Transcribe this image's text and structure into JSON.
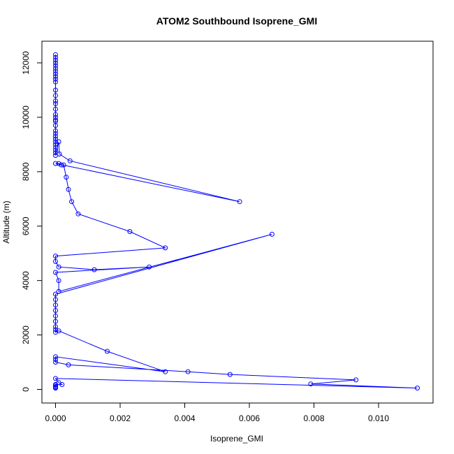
{
  "chart_data": {
    "type": "line",
    "title": "ATOM2 Southbound Isoprene_GMI",
    "xlabel": "Isoprene_GMI",
    "ylabel": "Altitude (m)",
    "xlim": [
      0,
      0.0112
    ],
    "ylim": [
      0,
      12300
    ],
    "xticks": [
      0.0,
      0.002,
      0.004,
      0.006,
      0.008,
      0.01
    ],
    "xtick_labels": [
      "0.000",
      "0.002",
      "0.004",
      "0.006",
      "0.008",
      "0.010"
    ],
    "yticks": [
      0,
      2000,
      4000,
      6000,
      8000,
      10000,
      12000
    ],
    "ytick_labels": [
      "0",
      "2000",
      "4000",
      "6000",
      "8000",
      "10000",
      "12000"
    ],
    "grid": false,
    "series": [
      {
        "color": "#0000ff",
        "marker": "open-circle",
        "x": [
          0.0,
          0.0,
          0.0,
          0.0,
          0.0,
          0.0,
          0.0,
          0.0,
          0.0,
          0.0,
          0.0,
          0.0,
          0.0,
          0.0,
          0.0,
          0.0,
          0.0,
          0.0,
          0.0,
          0.0,
          0.0,
          0.0,
          0.0,
          0.0,
          0.0,
          0.0,
          0.0,
          0.0,
          0.0,
          0.0,
          0.0,
          0.0001,
          0.00012,
          0.00045,
          0.0057,
          0.0,
          0.0001,
          0.00018,
          0.00025,
          0.00033,
          0.0004,
          0.0005,
          0.0007,
          0.0023,
          0.0034,
          0.0,
          0.0,
          0.0001,
          0.0012,
          0.0029,
          0.0,
          0.0001,
          0.0001,
          0.0067,
          0.0,
          0.0,
          0.0,
          0.0,
          0.0,
          0.0,
          0.0,
          0.0,
          0.0,
          0.0001,
          0.0016,
          0.0034,
          0.0,
          0.0,
          0.0,
          0.0004,
          0.0041,
          0.0054,
          0.0093,
          0.0079,
          0.0112,
          0.0,
          0.0001,
          0.0002,
          0.0,
          0.0,
          0.0,
          0.0,
          0.0
        ],
        "y": [
          12300,
          12200,
          12100,
          12000,
          11900,
          11800,
          11700,
          11600,
          11500,
          11400,
          11300,
          11000,
          10800,
          10600,
          10500,
          10300,
          10100,
          10000,
          9900,
          9850,
          9700,
          9500,
          9400,
          9300,
          9200,
          9100,
          9000,
          8900,
          8800,
          8700,
          8600,
          9100,
          8650,
          8400,
          6900,
          8300,
          8300,
          8250,
          8250,
          7800,
          7350,
          6900,
          6450,
          5800,
          5200,
          4900,
          4700,
          4500,
          4400,
          4500,
          4300,
          4000,
          3600,
          5700,
          3500,
          3300,
          3100,
          2900,
          2700,
          2500,
          2300,
          2200,
          2100,
          2150,
          1400,
          650,
          1200,
          1100,
          1000,
          900,
          650,
          550,
          350,
          200,
          50,
          400,
          250,
          180,
          180,
          150,
          100,
          80,
          50
        ]
      }
    ]
  }
}
